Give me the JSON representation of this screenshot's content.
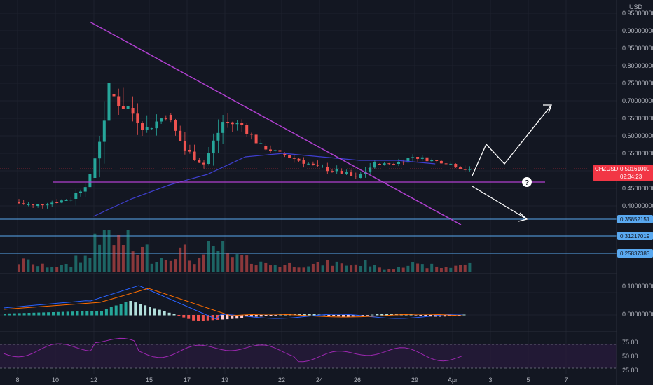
{
  "colors": {
    "background": "#131722",
    "grid": "#1e222d",
    "up": "#26a69a",
    "down": "#ef5350",
    "trendline": "#b040d0",
    "ma": "#3f3fd0",
    "level": "#5aa9f0",
    "rsi": "#9c27b0",
    "macd": "#2962ff",
    "signal": "#ff6d00",
    "price_tag": "#f23645"
  },
  "currency_label": "USD",
  "symbol": "CHZUSD",
  "last_price": "0.50161000",
  "countdown": "02:34:23",
  "question_icon": "?",
  "price_axis_labels": [
    "0.95000000",
    "0.90000000",
    "0.85000000",
    "0.80000000",
    "0.75000000",
    "0.70000000",
    "0.65000000",
    "0.60000000",
    "0.55000000",
    "0.50000000",
    "0.45000000",
    "0.40000000"
  ],
  "level_labels": [
    "0.35852151",
    "0.31217019",
    "0.25837383"
  ],
  "macd_axis_labels": [
    "0.10000000",
    "0.00000000"
  ],
  "rsi_axis_labels": [
    "75.00",
    "50.00",
    "25.00"
  ],
  "date_labels": [
    "8",
    "10",
    "12",
    "15",
    "17",
    "19",
    "22",
    "24",
    "26",
    "29",
    "Apr",
    "3",
    "5",
    "7"
  ],
  "chart_data": {
    "type": "candlestick",
    "symbol": "CHZUSD",
    "x_range": [
      "Mar 7",
      "Apr 8"
    ],
    "price_range": [
      0.37,
      0.97
    ],
    "candles_daily_approx": [
      {
        "day": "Mar 8",
        "open": 0.41,
        "high": 0.44,
        "low": 0.37,
        "close": 0.4
      },
      {
        "day": "Mar 9",
        "open": 0.4,
        "high": 0.42,
        "low": 0.38,
        "close": 0.41
      },
      {
        "day": "Mar 10",
        "open": 0.41,
        "high": 0.43,
        "low": 0.39,
        "close": 0.42
      },
      {
        "day": "Mar 11",
        "open": 0.42,
        "high": 0.5,
        "low": 0.4,
        "close": 0.48
      },
      {
        "day": "Mar 12",
        "open": 0.48,
        "high": 0.75,
        "low": 0.46,
        "close": 0.72
      },
      {
        "day": "Mar 13",
        "open": 0.72,
        "high": 0.88,
        "low": 0.66,
        "close": 0.68
      },
      {
        "day": "Mar 14",
        "open": 0.68,
        "high": 0.75,
        "low": 0.6,
        "close": 0.62
      },
      {
        "day": "Mar 15",
        "open": 0.62,
        "high": 0.7,
        "low": 0.6,
        "close": 0.66
      },
      {
        "day": "Mar 16",
        "open": 0.66,
        "high": 0.68,
        "low": 0.54,
        "close": 0.56
      },
      {
        "day": "Mar 17",
        "open": 0.56,
        "high": 0.58,
        "low": 0.49,
        "close": 0.52
      },
      {
        "day": "Mar 18",
        "open": 0.52,
        "high": 0.66,
        "low": 0.5,
        "close": 0.64
      },
      {
        "day": "Mar 19",
        "open": 0.64,
        "high": 0.71,
        "low": 0.61,
        "close": 0.63
      },
      {
        "day": "Mar 20",
        "open": 0.63,
        "high": 0.64,
        "low": 0.56,
        "close": 0.57
      },
      {
        "day": "Mar 21",
        "open": 0.57,
        "high": 0.58,
        "low": 0.53,
        "close": 0.55
      },
      {
        "day": "Mar 22",
        "open": 0.55,
        "high": 0.56,
        "low": 0.51,
        "close": 0.53
      },
      {
        "day": "Mar 23",
        "open": 0.53,
        "high": 0.54,
        "low": 0.49,
        "close": 0.51
      },
      {
        "day": "Mar 24",
        "open": 0.51,
        "high": 0.55,
        "low": 0.49,
        "close": 0.5
      },
      {
        "day": "Mar 25",
        "open": 0.5,
        "high": 0.51,
        "low": 0.46,
        "close": 0.48
      },
      {
        "day": "Mar 26",
        "open": 0.48,
        "high": 0.53,
        "low": 0.47,
        "close": 0.52
      },
      {
        "day": "Mar 27",
        "open": 0.52,
        "high": 0.53,
        "low": 0.51,
        "close": 0.52
      },
      {
        "day": "Mar 28",
        "open": 0.52,
        "high": 0.56,
        "low": 0.51,
        "close": 0.54
      },
      {
        "day": "Mar 29",
        "open": 0.54,
        "high": 0.56,
        "low": 0.52,
        "close": 0.53
      },
      {
        "day": "Mar 30",
        "open": 0.53,
        "high": 0.54,
        "low": 0.51,
        "close": 0.52
      },
      {
        "day": "Mar 31",
        "open": 0.52,
        "high": 0.53,
        "low": 0.48,
        "close": 0.5
      }
    ],
    "moving_average": [
      {
        "day": "Mar 12",
        "value": 0.37
      },
      {
        "day": "Mar 14",
        "value": 0.42
      },
      {
        "day": "Mar 16",
        "value": 0.46
      },
      {
        "day": "Mar 18",
        "value": 0.49
      },
      {
        "day": "Mar 20",
        "value": 0.54
      },
      {
        "day": "Mar 22",
        "value": 0.55
      },
      {
        "day": "Mar 24",
        "value": 0.54
      },
      {
        "day": "Mar 26",
        "value": 0.53
      },
      {
        "day": "Mar 28",
        "value": 0.53
      },
      {
        "day": "Mar 30",
        "value": 0.52
      }
    ],
    "descending_trendline": [
      {
        "day": "Mar 11.8",
        "price": 0.93
      },
      {
        "day": "Mar 31.6",
        "price": 0.37
      }
    ],
    "support_line": {
      "price": 0.465,
      "from": "Mar 8.5",
      "to": "Apr 6.2"
    },
    "horizontal_levels": [
      0.35852151,
      0.31217019,
      0.25837383
    ],
    "annotations": [
      "bullish breakout arrow",
      "bearish breakdown arrow",
      "question mark"
    ],
    "grid": true
  }
}
